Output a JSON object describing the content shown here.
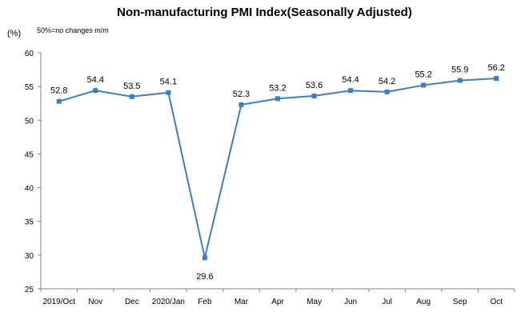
{
  "chart_data": {
    "type": "line",
    "title": "Non-manufacturing PMI Index(Seasonally Adjusted)",
    "y_unit_label": "(%)",
    "note": "50%=no changes  m/m",
    "categories": [
      "2019/Oct",
      "Nov",
      "Dec",
      "2020/Jan",
      "Feb",
      "Mar",
      "Apr",
      "May",
      "Jun",
      "Jul",
      "Aug",
      "Sep",
      "Oct"
    ],
    "series": [
      {
        "values": [
          52.8,
          54.4,
          53.5,
          54.1,
          29.6,
          52.3,
          53.2,
          53.6,
          54.4,
          54.2,
          55.2,
          55.9,
          56.2
        ]
      }
    ],
    "data_labels": [
      "52.8",
      "54.4",
      "53.5",
      "54.1",
      "29.6",
      "52.3",
      "53.2",
      "53.6",
      "54.4",
      "54.2",
      "55.2",
      "55.9",
      "56.2"
    ],
    "ylim": [
      25,
      60
    ],
    "yticks": [
      25,
      30,
      35,
      40,
      45,
      50,
      55,
      60
    ],
    "ytick_labels": [
      "25",
      "30",
      "35",
      "40",
      "45",
      "50",
      "55",
      "60"
    ],
    "grid": false,
    "legend": "none",
    "colors": {
      "line": "#3c7dc4",
      "marker": "#3c7dc4",
      "axis": "#808080"
    }
  }
}
